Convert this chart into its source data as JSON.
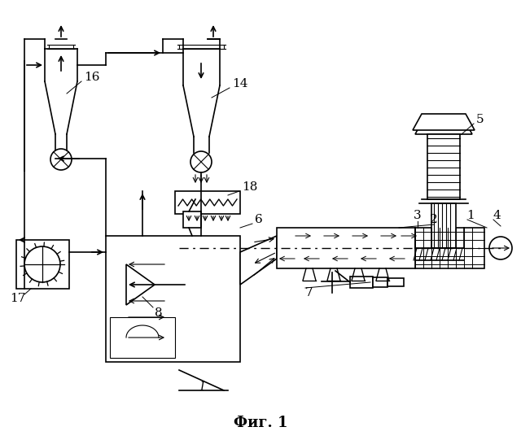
{
  "title": "Фиг. 1",
  "title_fontsize": 13,
  "background_color": "#ffffff",
  "fig_width": 6.4,
  "fig_height": 5.41,
  "dpi": 100
}
